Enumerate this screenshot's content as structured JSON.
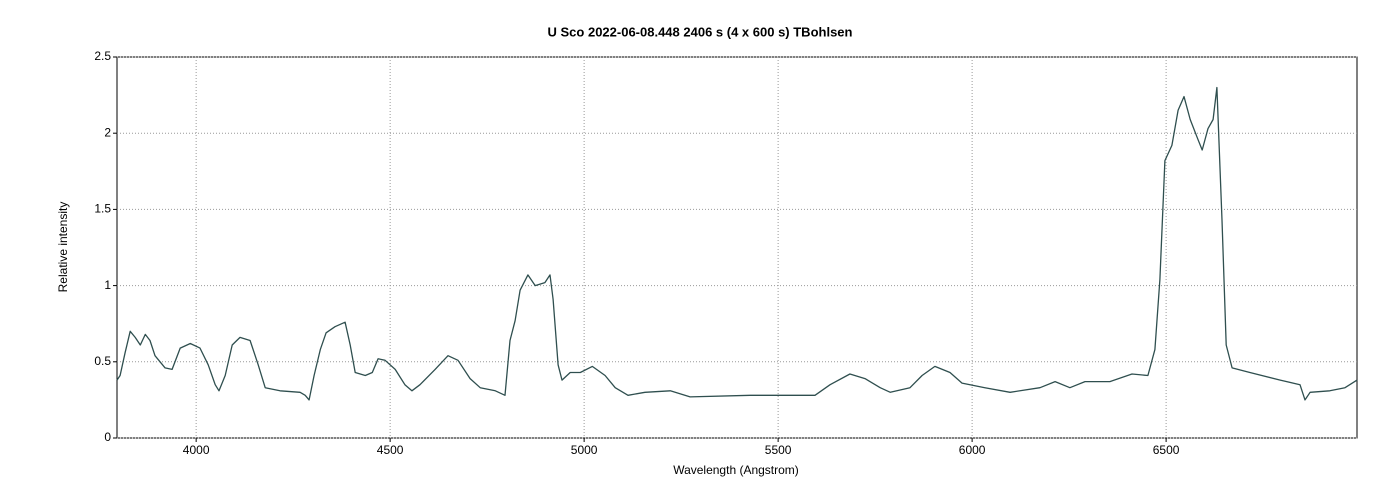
{
  "chart_data": {
    "type": "line",
    "title": "U Sco   2022-06-08.448   2406 s (4 x 600 s)   TBohlsen",
    "xlabel": "Wavelength (Angstrom)",
    "ylabel": "Relative intensity",
    "color": "#2f4f4f",
    "grid": true,
    "xlim": [
      3796,
      6992
    ],
    "ylim": [
      0,
      2.5
    ],
    "xticks": [
      4000,
      4500,
      5000,
      5500,
      6000,
      6500
    ],
    "yticks": [
      0,
      0.5,
      1,
      1.5,
      2,
      2.5
    ],
    "x": [
      3796,
      3804,
      3817,
      3830,
      3843,
      3856,
      3869,
      3881,
      3894,
      3920,
      3938,
      3959,
      3985,
      4010,
      4031,
      4049,
      4059,
      4075,
      4093,
      4113,
      4139,
      4160,
      4178,
      4216,
      4268,
      4281,
      4291,
      4304,
      4320,
      4335,
      4358,
      4384,
      4397,
      4410,
      4436,
      4454,
      4469,
      4487,
      4513,
      4538,
      4556,
      4577,
      4616,
      4649,
      4675,
      4706,
      4732,
      4771,
      4796,
      4809,
      4822,
      4835,
      4855,
      4874,
      4899,
      4912,
      4920,
      4933,
      4943,
      4964,
      4990,
      5021,
      5054,
      5080,
      5113,
      5157,
      5222,
      5273,
      5428,
      5556,
      5595,
      5634,
      5685,
      5724,
      5763,
      5789,
      5840,
      5871,
      5904,
      5943,
      5974,
      6033,
      6098,
      6175,
      6214,
      6252,
      6291,
      6355,
      6412,
      6453,
      6471,
      6484,
      6497,
      6515,
      6531,
      6546,
      6562,
      6582,
      6593,
      6608,
      6621,
      6631,
      6644,
      6655,
      6670,
      6716,
      6794,
      6845,
      6858,
      6871,
      6922,
      6961,
      6992
    ],
    "values": [
      0.38,
      0.41,
      0.56,
      0.7,
      0.66,
      0.61,
      0.68,
      0.64,
      0.54,
      0.46,
      0.45,
      0.59,
      0.62,
      0.59,
      0.48,
      0.35,
      0.31,
      0.41,
      0.61,
      0.66,
      0.64,
      0.48,
      0.33,
      0.31,
      0.3,
      0.28,
      0.25,
      0.41,
      0.58,
      0.69,
      0.73,
      0.76,
      0.61,
      0.43,
      0.41,
      0.43,
      0.52,
      0.51,
      0.45,
      0.35,
      0.31,
      0.35,
      0.45,
      0.54,
      0.51,
      0.39,
      0.33,
      0.31,
      0.28,
      0.64,
      0.77,
      0.97,
      1.07,
      1.0,
      1.02,
      1.07,
      0.91,
      0.48,
      0.38,
      0.43,
      0.43,
      0.47,
      0.41,
      0.33,
      0.28,
      0.3,
      0.31,
      0.27,
      0.28,
      0.28,
      0.28,
      0.35,
      0.42,
      0.39,
      0.33,
      0.3,
      0.33,
      0.41,
      0.47,
      0.43,
      0.36,
      0.33,
      0.3,
      0.33,
      0.37,
      0.33,
      0.37,
      0.37,
      0.42,
      0.41,
      0.58,
      1.04,
      1.82,
      1.92,
      2.15,
      2.24,
      2.09,
      1.96,
      1.89,
      2.03,
      2.09,
      2.3,
      1.43,
      0.61,
      0.46,
      0.43,
      0.38,
      0.35,
      0.25,
      0.3,
      0.31,
      0.33,
      0.38
    ]
  }
}
